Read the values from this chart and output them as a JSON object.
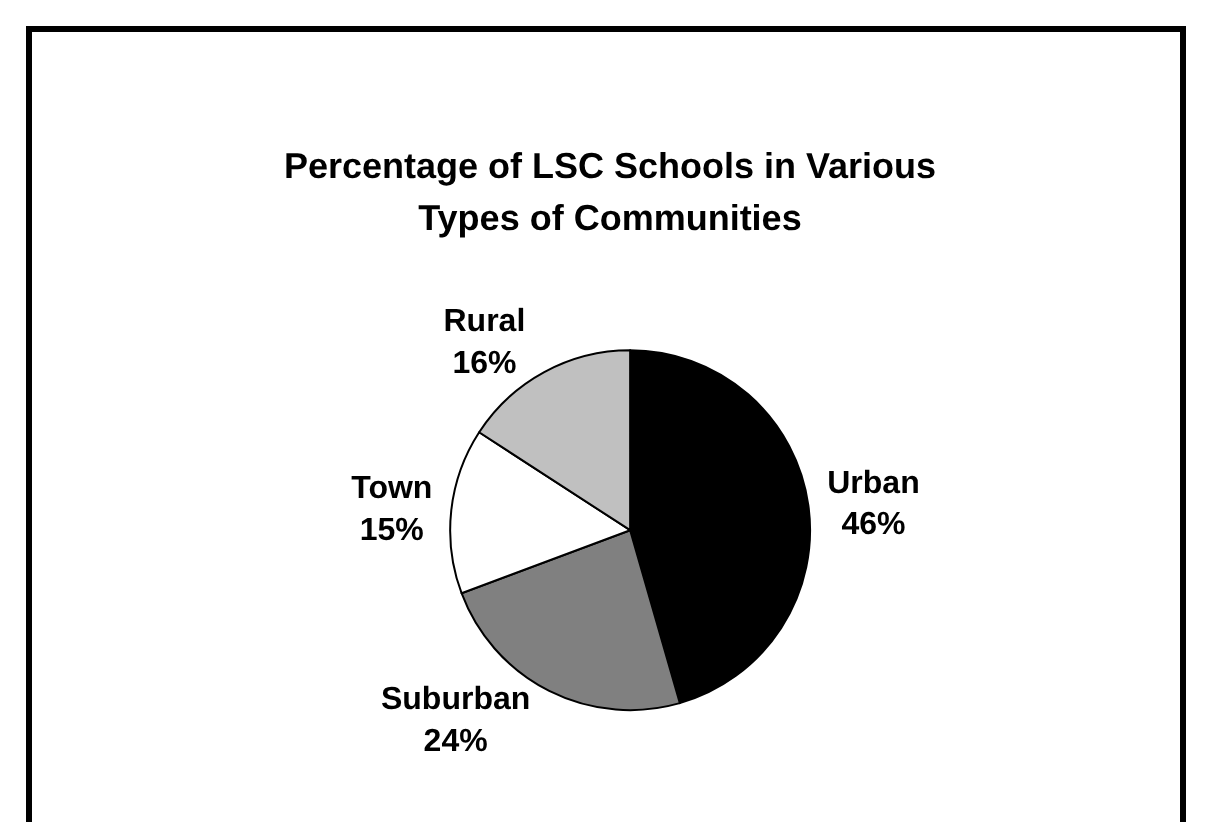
{
  "chart_data": {
    "type": "pie",
    "title": "Percentage of LSC Schools in Various Types of Communities",
    "categories": [
      "Urban",
      "Suburban",
      "Town",
      "Rural"
    ],
    "values": [
      46,
      24,
      15,
      16
    ],
    "value_labels": [
      "46%",
      "24%",
      "15%",
      "16%"
    ],
    "colors": [
      "#000000",
      "#808080",
      "#ffffff",
      "#c0c0c0"
    ],
    "legend": false
  }
}
